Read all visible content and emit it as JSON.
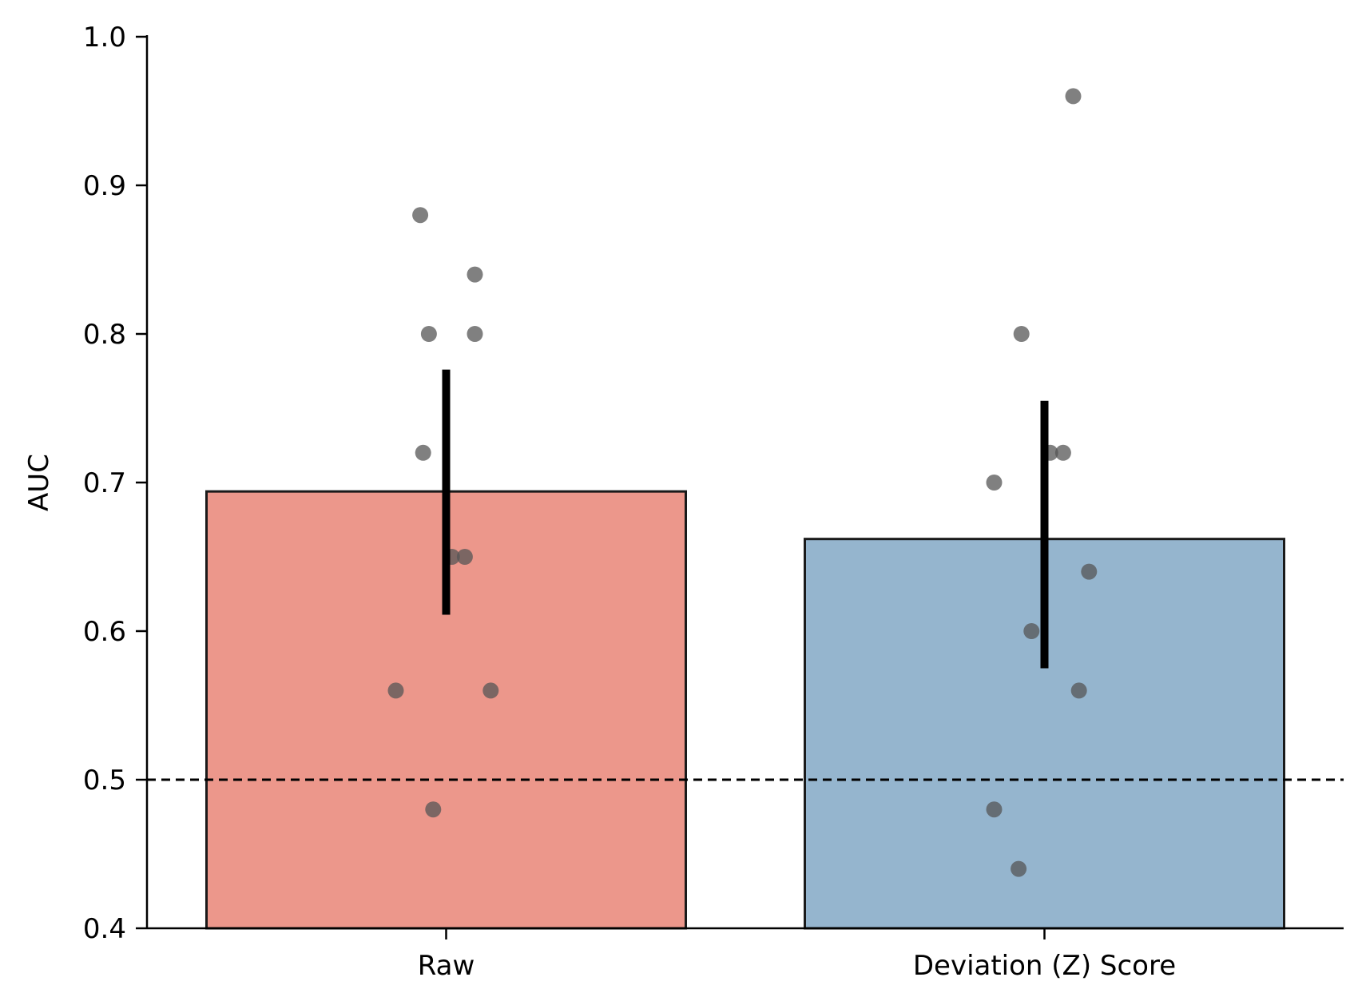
{
  "chart_data": {
    "type": "bar",
    "categories": [
      "Raw",
      "Deviation (Z) Score"
    ],
    "values": [
      0.694,
      0.662
    ],
    "error_bars": [
      {
        "low": 0.611,
        "high": 0.776
      },
      {
        "low": 0.575,
        "high": 0.755
      }
    ],
    "points": [
      [
        0.88,
        0.84,
        0.8,
        0.8,
        0.72,
        0.65,
        0.65,
        0.56,
        0.56,
        0.48
      ],
      [
        0.96,
        0.8,
        0.72,
        0.72,
        0.7,
        0.64,
        0.6,
        0.56,
        0.48,
        0.44
      ]
    ],
    "reference_line": 0.5,
    "ylabel": "AUC",
    "xlabel": "",
    "ylim": [
      0.4,
      1.0
    ],
    "yticks": [
      0.4,
      0.5,
      0.6,
      0.7,
      0.8,
      0.9,
      1.0
    ],
    "ytick_labels": [
      "0.4",
      "0.5",
      "0.6",
      "0.7",
      "0.8",
      "0.9",
      "1.0"
    ],
    "grid": false,
    "colors": {
      "bars": [
        "#ec978b",
        "#95b5ce"
      ],
      "bar_edge": "#1a1a1a",
      "points": "#555555",
      "error_bar": "#000000",
      "reference_line": "#000000"
    }
  }
}
